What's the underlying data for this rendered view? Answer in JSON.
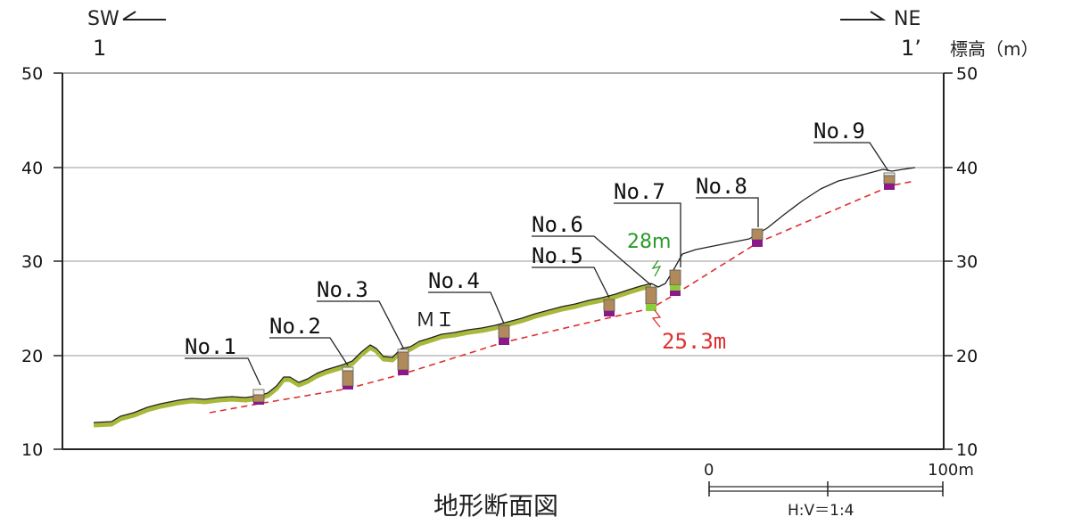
{
  "direction": {
    "left": "SW",
    "right": "NE"
  },
  "section_marks": {
    "left": "1",
    "right": "1’"
  },
  "axis_unit": "標高（m）",
  "y_ticks": [
    "50",
    "40",
    "30",
    "20",
    "10"
  ],
  "y_values": [
    50,
    40,
    30,
    20,
    10
  ],
  "scale_bar": {
    "start": "0",
    "end": "100m",
    "ratio": "H:V＝1:4"
  },
  "title": "地形断面図",
  "landslide_label": "ＭＩ",
  "annotations": {
    "upper_depth": "28m",
    "lower_depth": "25.3m"
  },
  "boreholes": [
    {
      "label": "No.1",
      "elevation": 16
    },
    {
      "label": "No.2",
      "elevation": 19
    },
    {
      "label": "No.3",
      "elevation": 20.5
    },
    {
      "label": "No.4",
      "elevation": 23.5
    },
    {
      "label": "No.5",
      "elevation": 26
    },
    {
      "label": "No.6",
      "elevation": 27.5
    },
    {
      "label": "No.7",
      "elevation": 29.5
    },
    {
      "label": "No.8",
      "elevation": 33.5
    },
    {
      "label": "No.9",
      "elevation": 39
    }
  ],
  "colors": {
    "ground_fill": "#a8b83a",
    "slip_line": "#e03030",
    "annotation_green": "#2a9a2a",
    "annotation_red": "#e03030",
    "borehole_brown": "#b08a5a",
    "borehole_purple": "#8a1a8a",
    "borehole_green": "#8acc3a"
  }
}
